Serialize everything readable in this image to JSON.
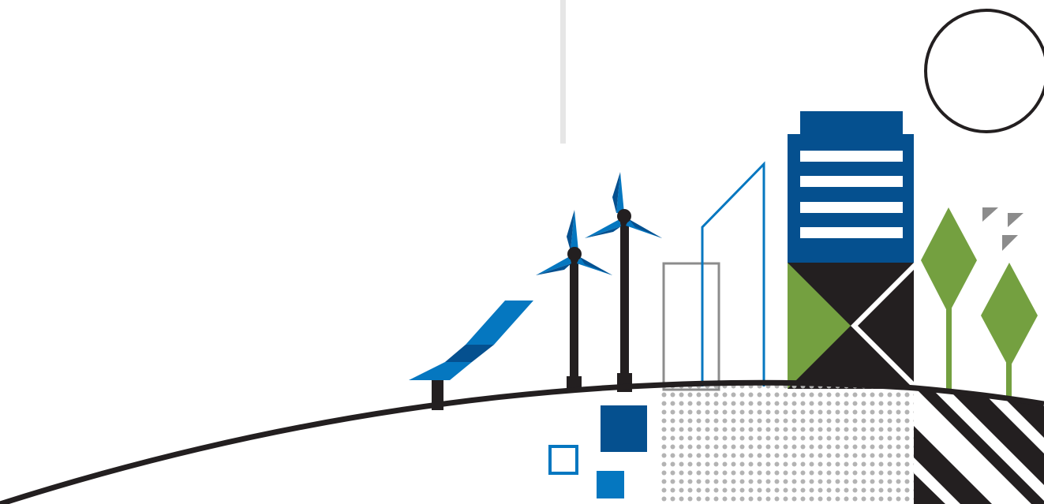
{
  "illustration": {
    "subject": "sustainable-city-landscape",
    "elements": [
      "divider-line",
      "sun-circle",
      "solar-panel",
      "wind-turbine-short",
      "wind-turbine-tall",
      "outline-building-gray",
      "outline-building-blue",
      "office-tower",
      "tree-large",
      "tree-small",
      "bird-shapes",
      "hill-curve",
      "dot-pattern-field",
      "striped-field",
      "square-blocks"
    ]
  },
  "colors": {
    "navy": "#05508f",
    "blue": "#0577c0",
    "dark": "#231f20",
    "green": "#74a040",
    "gray": "#8c8c8c",
    "light_gray": "#e6e6e6",
    "dot": "#b3b3b3"
  }
}
